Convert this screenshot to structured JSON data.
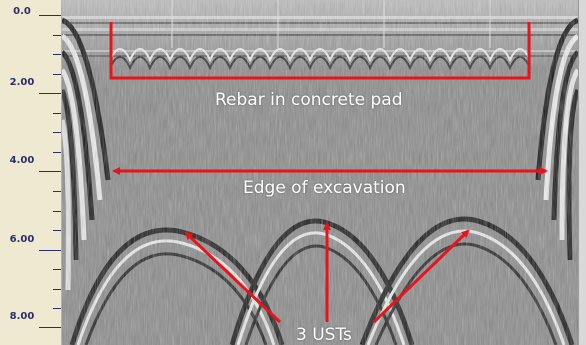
{
  "depth_ruler": {
    "labels": [
      "0.0",
      "2.00",
      "4.00",
      "6.00",
      "8.00"
    ]
  },
  "annotations": {
    "rebar": "Rebar in concrete pad",
    "edge": "Edge of excavation",
    "usts": "3 USTs"
  },
  "colors": {
    "annotation_red": "#e8141b",
    "annotation_text": "#ffffff",
    "ruler_bg": "#efe9d1",
    "ruler_text": "#2a2f6b"
  }
}
